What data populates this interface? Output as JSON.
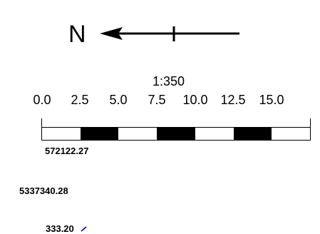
{
  "north": {
    "label": "N",
    "icon": "north-arrow-icon"
  },
  "scale": {
    "ratio": "1:350",
    "ticks": [
      "0.0",
      "2.5",
      "5.0",
      "7.5",
      "10.0",
      "12.5",
      "15.0"
    ],
    "segments": [
      "white",
      "black",
      "white",
      "black",
      "white",
      "black",
      "white"
    ],
    "segment_colors": {
      "white": "#ffffff",
      "black": "#000000"
    }
  },
  "coordinates": {
    "x": "572122.27",
    "y": "5337340.28",
    "z": "333.20"
  },
  "colors": {
    "text": "#000000",
    "cursor_accent": "#0000cc"
  }
}
